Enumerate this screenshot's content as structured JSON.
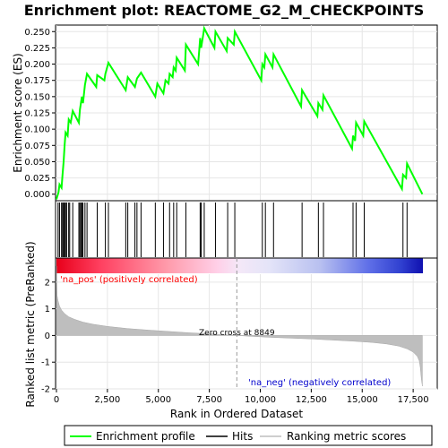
{
  "chart_data": {
    "type": "line",
    "title": "Enrichment plot: REACTOME_G2_M_CHECKPOINTS",
    "ylabel_top": "Enrichment score (ES)",
    "ylabel_bottom": "Ranked list metric (PreRanked)",
    "xlabel": "Rank in Ordered Dataset",
    "x_ticks": [
      "0",
      "2,500",
      "5,000",
      "7,500",
      "10,000",
      "12,500",
      "15,000",
      "17,500"
    ],
    "x_tick_values": [
      0,
      2500,
      5000,
      7500,
      10000,
      12500,
      15000,
      17500
    ],
    "xlim": [
      0,
      18000
    ],
    "es_ylim": [
      -0.01,
      0.26
    ],
    "es_y_ticks": [
      "0.000",
      "0.025",
      "0.050",
      "0.075",
      "0.100",
      "0.125",
      "0.150",
      "0.175",
      "0.200",
      "0.225",
      "0.250"
    ],
    "es_y_tick_values": [
      0,
      0.025,
      0.05,
      0.075,
      0.1,
      0.125,
      0.15,
      0.175,
      0.2,
      0.225,
      0.25
    ],
    "metric_ylim": [
      -2,
      2.9
    ],
    "metric_y_ticks": [
      "-2",
      "-1",
      "0",
      "1",
      "2"
    ],
    "metric_y_tick_values": [
      -2,
      -1,
      0,
      1,
      2
    ],
    "zero_cross_label": "Zero cross at 8849",
    "zero_cross": 8849,
    "pos_label": "'na_pos' (positively correlated)",
    "neg_label": "'na_neg' (negatively correlated)",
    "legend": [
      "Enrichment profile",
      "Hits",
      "Ranking metric scores"
    ],
    "colors": {
      "profile": "#00ff00",
      "hits": "#000000",
      "metric": "#bebebe",
      "pos_text": "#ff0000",
      "neg_text": "#0000cd"
    },
    "enrichment_profile": {
      "x": [
        0,
        100,
        150,
        250,
        300,
        350,
        400,
        450,
        550,
        600,
        700,
        800,
        1100,
        1150,
        1250,
        1300,
        1400,
        1500,
        1950,
        2000,
        2350,
        2400,
        2550,
        3400,
        3500,
        3850,
        3950,
        4150,
        4850,
        4950,
        5250,
        5350,
        5500,
        5550,
        5700,
        5750,
        5850,
        5900,
        6300,
        6350,
        6950,
        7000,
        7050,
        7100,
        7200,
        7250,
        7750,
        7800,
        8350,
        8400,
        8700,
        8750,
        10050,
        10100,
        10200,
        10250,
        10600,
        10650,
        12000,
        12050,
        12800,
        12850,
        13050,
        13100,
        14500,
        14550,
        14650,
        14700,
        15050,
        15100,
        16950,
        17000,
        17150,
        17200,
        17950
      ],
      "y": [
        -0.008,
        0.003,
        0.015,
        0.01,
        0.03,
        0.05,
        0.075,
        0.095,
        0.09,
        0.115,
        0.11,
        0.128,
        0.11,
        0.13,
        0.15,
        0.14,
        0.168,
        0.185,
        0.165,
        0.183,
        0.175,
        0.185,
        0.202,
        0.16,
        0.18,
        0.165,
        0.178,
        0.187,
        0.15,
        0.17,
        0.155,
        0.175,
        0.17,
        0.185,
        0.18,
        0.195,
        0.19,
        0.21,
        0.19,
        0.23,
        0.2,
        0.22,
        0.24,
        0.225,
        0.245,
        0.255,
        0.225,
        0.25,
        0.22,
        0.24,
        0.23,
        0.25,
        0.175,
        0.2,
        0.195,
        0.215,
        0.195,
        0.215,
        0.135,
        0.16,
        0.12,
        0.14,
        0.13,
        0.152,
        0.07,
        0.09,
        0.082,
        0.11,
        0.09,
        0.112,
        0.008,
        0.03,
        0.025,
        0.047,
        0.0
      ]
    },
    "hits": [
      80,
      150,
      250,
      300,
      350,
      380,
      400,
      450,
      500,
      600,
      650,
      800,
      1100,
      1150,
      1200,
      1250,
      1300,
      1400,
      1500,
      2000,
      2400,
      2550,
      3400,
      3500,
      3850,
      3950,
      4150,
      4850,
      5250,
      5550,
      5750,
      5900,
      6350,
      7050,
      7100,
      7250,
      7800,
      8400,
      8750,
      10100,
      10250,
      10650,
      12050,
      12850,
      13100,
      14550,
      14700,
      15100,
      17000,
      17200
    ],
    "ranking_metric": {
      "x": [
        0,
        30,
        80,
        150,
        250,
        400,
        600,
        900,
        1300,
        1800,
        2500,
        3500,
        4500,
        5500,
        6500,
        7500,
        8500,
        8849,
        9500,
        10500,
        11500,
        12500,
        13500,
        14500,
        15500,
        16200,
        16800,
        17200,
        17500,
        17700,
        17800,
        17850,
        17900,
        17950
      ],
      "y": [
        2.6,
        1.5,
        1.3,
        1.1,
        0.95,
        0.82,
        0.7,
        0.6,
        0.5,
        0.42,
        0.34,
        0.26,
        0.2,
        0.15,
        0.1,
        0.06,
        0.02,
        0.0,
        -0.03,
        -0.07,
        -0.1,
        -0.13,
        -0.17,
        -0.21,
        -0.26,
        -0.32,
        -0.4,
        -0.5,
        -0.62,
        -0.78,
        -0.95,
        -1.2,
        -1.6,
        -1.9
      ]
    }
  }
}
